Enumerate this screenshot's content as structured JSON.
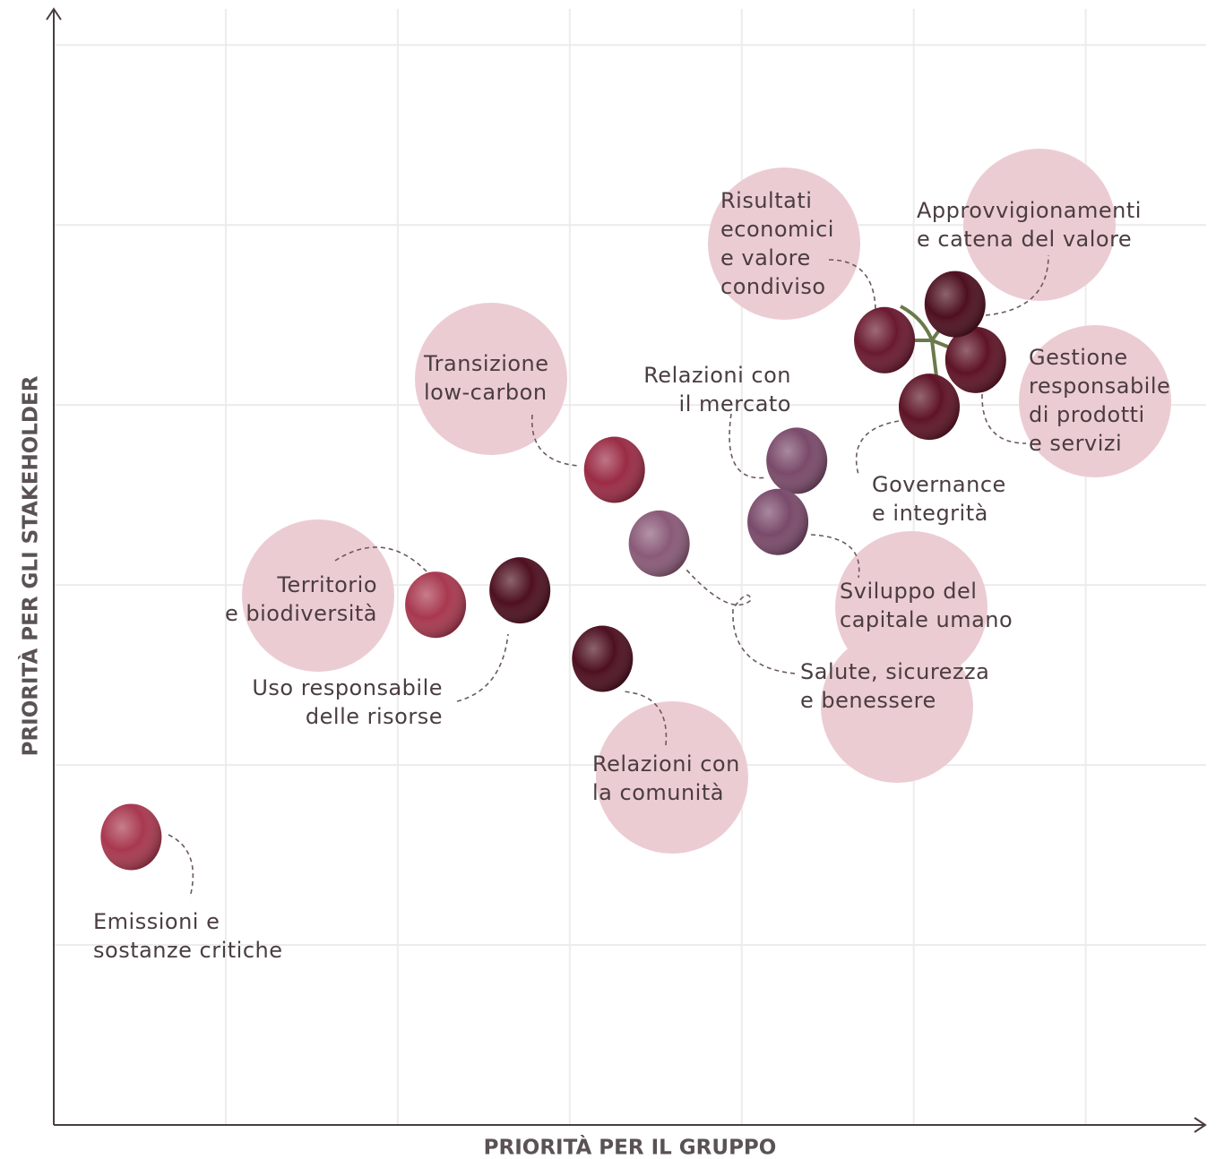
{
  "chart_data": {
    "type": "scatter",
    "x_label": "PRIORITÀ PER IL GRUPPO",
    "y_label": "PRIORITÀ PER GLI STAKEHOLDER",
    "xlim": [
      0,
      6.7
    ],
    "ylim": [
      0,
      6.2
    ],
    "xticks": [
      1,
      2,
      3,
      4,
      5,
      6
    ],
    "yticks": [
      1,
      2,
      3,
      4,
      5,
      6
    ],
    "grid": true,
    "points": [
      {
        "lines": [
          "Emissioni e",
          "sostanze critiche"
        ],
        "x": 0.45,
        "y": 1.6,
        "color": "#a8384f"
      },
      {
        "lines": [
          "Territorio",
          "e biodiversità"
        ],
        "x": 2.22,
        "y": 2.89,
        "color": "#a8384f"
      },
      {
        "lines": [
          "Uso responsabile",
          "delle risorse"
        ],
        "x": 2.71,
        "y": 2.97,
        "color": "#4e1020"
      },
      {
        "lines": [
          "Transizione",
          "low-carbon"
        ],
        "x": 3.26,
        "y": 3.64,
        "color": "#9a2c45"
      },
      {
        "lines": [
          "Relazioni con",
          "la comunità"
        ],
        "x": 3.19,
        "y": 2.59,
        "color": "#4e1020"
      },
      {
        "lines": [
          "Salute, sicurezza",
          "e benessere"
        ],
        "x": 3.52,
        "y": 3.23,
        "color": "#8a5a78"
      },
      {
        "lines": [
          "Relazioni con",
          "il mercato"
        ],
        "x": 4.32,
        "y": 3.69,
        "color": "#7a4a6a"
      },
      {
        "lines": [
          "Sviluppo del",
          "capitale umano"
        ],
        "x": 4.21,
        "y": 3.35,
        "color": "#7a4a6a"
      },
      {
        "lines": [
          "Governance",
          "e integrità"
        ],
        "x": 5.09,
        "y": 3.99,
        "color": "#5e1426"
      },
      {
        "lines": [
          "Gestione",
          "responsabile",
          "di prodotti",
          "e servizi"
        ],
        "x": 5.36,
        "y": 4.25,
        "color": "#5e1426"
      },
      {
        "lines": [
          "Approvvigionamenti",
          "e catena del valore"
        ],
        "x": 5.24,
        "y": 4.56,
        "color": "#4e1020"
      },
      {
        "lines": [
          "Risultati",
          "economici",
          "e valore",
          "condiviso"
        ],
        "x": 4.83,
        "y": 4.36,
        "color": "#6a1a30"
      }
    ]
  }
}
